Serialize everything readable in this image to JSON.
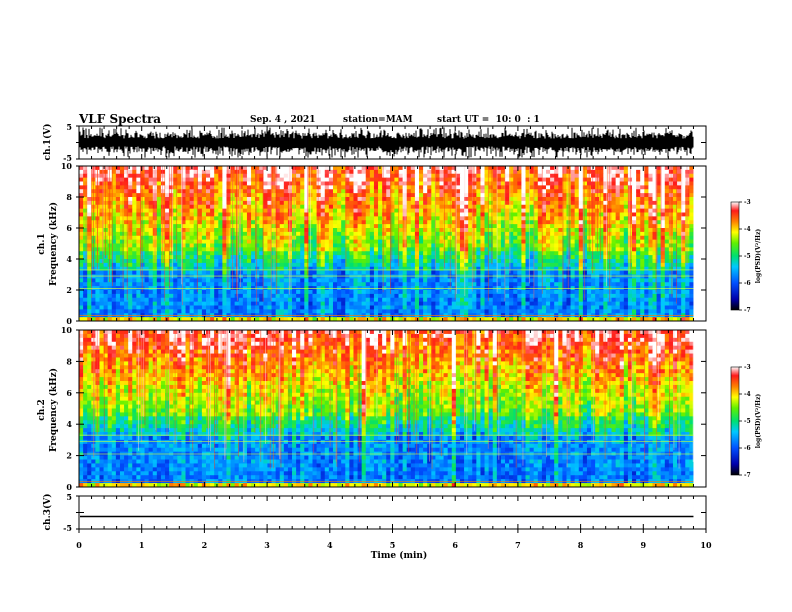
{
  "header": {
    "title": "VLF Spectra",
    "date": "Sep. 4 , 2021",
    "station": "station=MAM",
    "start_ut": "start UT =  10: 0  : 1"
  },
  "chart_data": [
    {
      "type": "line",
      "panel": "ch1-waveform",
      "ylabel": "ch.1(V)",
      "ylim": [
        -5,
        5
      ],
      "y_ticks": [
        "5",
        "-5"
      ],
      "xlim": [
        0,
        10
      ]
    },
    {
      "type": "heatmap",
      "panel": "ch1-spectrogram",
      "ylabel": "ch.1\nFrequency (kHz)",
      "ylim": [
        0,
        10
      ],
      "y_ticks": [
        "0",
        "2",
        "4",
        "6",
        "8",
        "10"
      ],
      "xlim": [
        0,
        10
      ],
      "data_end_min": 9.8,
      "colorbar": {
        "label": "log(PSD)(V²/Hz)",
        "range": [
          -7,
          -3
        ],
        "ticks": [
          "-3",
          "-4",
          "-5",
          "-6",
          "-7"
        ]
      }
    },
    {
      "type": "heatmap",
      "panel": "ch2-spectrogram",
      "ylabel": "ch.2\nFrequency (kHz)",
      "ylim": [
        0,
        10
      ],
      "y_ticks": [
        "0",
        "2",
        "4",
        "6",
        "8",
        "10"
      ],
      "xlim": [
        0,
        10
      ],
      "data_end_min": 9.8,
      "colorbar": {
        "label": "log(PSD)(V²/Hz)",
        "range": [
          -7,
          -3
        ],
        "ticks": [
          "-3",
          "-4",
          "-5",
          "-6",
          "-7"
        ]
      }
    },
    {
      "type": "line",
      "panel": "ch3-waveform",
      "ylabel": "ch.3(V)",
      "ylim": [
        -5,
        5
      ],
      "y_ticks": [
        "5",
        "-5"
      ],
      "xlim": [
        0,
        10
      ],
      "constant_value": -1.2,
      "xlabel": "Time (min)",
      "x_ticks": [
        "0",
        "1",
        "2",
        "3",
        "4",
        "5",
        "6",
        "7",
        "8",
        "9",
        "10"
      ]
    }
  ]
}
